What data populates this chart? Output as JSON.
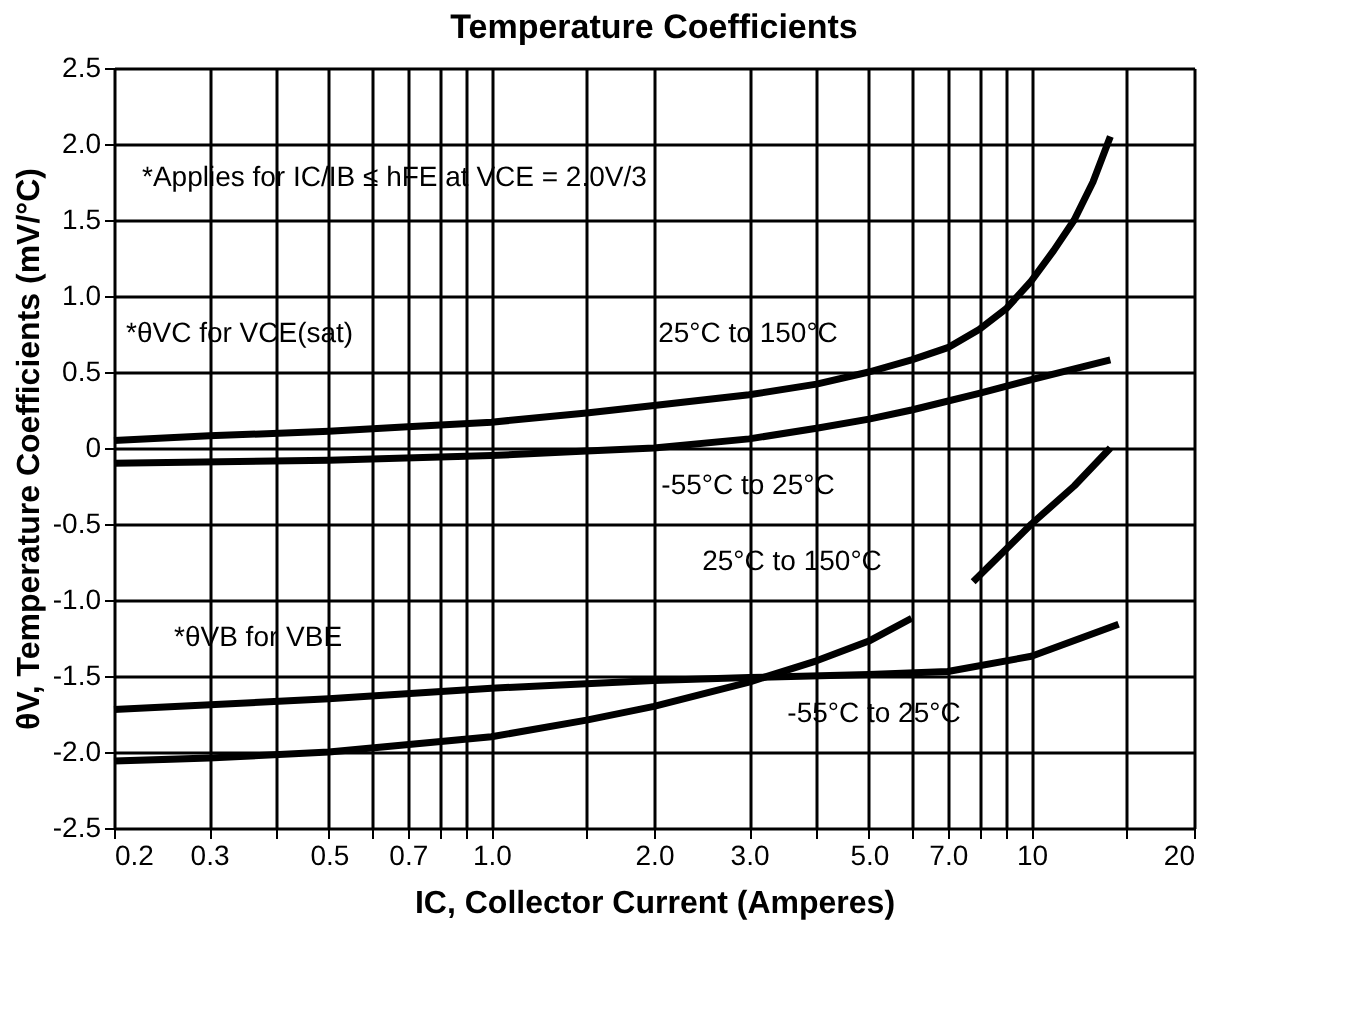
{
  "chart_data": {
    "type": "line",
    "title": "Temperature Coefficients",
    "xlabel": "IC, Collector Current (Amperes)",
    "ylabel": "θV, Temperature Coefficients (mV/°C)",
    "log": "x",
    "grid": true,
    "xlim": [
      0.2,
      20
    ],
    "ylim": [
      -2.5,
      2.5
    ],
    "xticks": [
      0.2,
      0.3,
      {
        "value": 0.4,
        "label": null
      },
      0.5,
      {
        "value": 0.6,
        "label": null
      },
      0.7,
      {
        "value": 0.8,
        "label": null
      },
      {
        "value": 0.9,
        "label": null
      },
      {
        "value": 1,
        "label": "1.0"
      },
      {
        "value": 1.5,
        "label": null
      },
      {
        "value": 2,
        "label": "2.0"
      },
      {
        "value": 3,
        "label": "3.0"
      },
      {
        "value": 4,
        "label": null
      },
      {
        "value": 5,
        "label": "5.0"
      },
      {
        "value": 6,
        "label": null
      },
      {
        "value": 7,
        "label": "7.0"
      },
      {
        "value": 8,
        "label": null
      },
      {
        "value": 9,
        "label": null
      },
      10,
      {
        "value": 15,
        "label": null
      },
      20
    ],
    "yticks": [
      -2.5,
      {
        "value": -2,
        "label": "-2.0"
      },
      -1.5,
      {
        "value": -1,
        "label": "-1.0"
      },
      -0.5,
      0,
      0.5,
      {
        "value": 1,
        "label": "1.0"
      },
      1.5,
      {
        "value": 2,
        "label": "2.0"
      },
      2.5
    ],
    "series": [
      {
        "color": "#000000",
        "x": [
          0.2,
          0.3,
          0.5,
          0.7,
          1.0,
          1.5,
          2.0,
          3.0,
          4.0,
          5.0,
          6.0,
          7.0,
          8.0,
          9.0,
          10,
          11,
          12,
          13,
          14
        ],
        "values": [
          0.05,
          0.08,
          0.11,
          0.14,
          0.17,
          0.23,
          0.28,
          0.35,
          0.42,
          0.5,
          0.58,
          0.66,
          0.78,
          0.92,
          1.1,
          1.3,
          1.5,
          1.75,
          2.05
        ]
      },
      {
        "color": "#000000",
        "x": [
          0.2,
          0.5,
          1.0,
          1.5,
          2.0,
          3.0,
          4.0,
          5.0,
          6.0,
          8.0,
          10,
          14
        ],
        "values": [
          -0.1,
          -0.08,
          -0.05,
          -0.02,
          0.0,
          0.06,
          0.13,
          0.19,
          0.25,
          0.36,
          0.45,
          0.58
        ]
      },
      {
        "color": "#000000",
        "x": [
          0.2,
          0.5,
          1.0,
          2.0,
          3.0,
          5.0,
          7.0,
          10,
          14.5
        ],
        "values": [
          -1.72,
          -1.65,
          -1.58,
          -1.53,
          -1.51,
          -1.49,
          -1.47,
          -1.37,
          -1.16
        ]
      },
      {
        "color": "#000000",
        "x": [
          0.2,
          0.3,
          0.5,
          1.0,
          1.5,
          2.0,
          3.0,
          4.0,
          5.0,
          6.0,
          7.0,
          7.8,
          10,
          12,
          14
        ],
        "values": [
          -2.06,
          -2.04,
          -2.0,
          -1.9,
          -1.79,
          -1.7,
          -1.54,
          -1.4,
          -1.27,
          -1.12,
          null,
          -0.88,
          -0.5,
          -0.25,
          0.0
        ]
      }
    ],
    "annotations": [
      "*Applies for IC/IB ≤ hFE at VCE = 2.0V/3",
      "*θVC for VCE(sat)",
      "*θVB for VBE",
      "25°C to 150°C",
      "-55°C to 25°C",
      "25°C to 150°C",
      "-55°C to 25°C"
    ]
  }
}
